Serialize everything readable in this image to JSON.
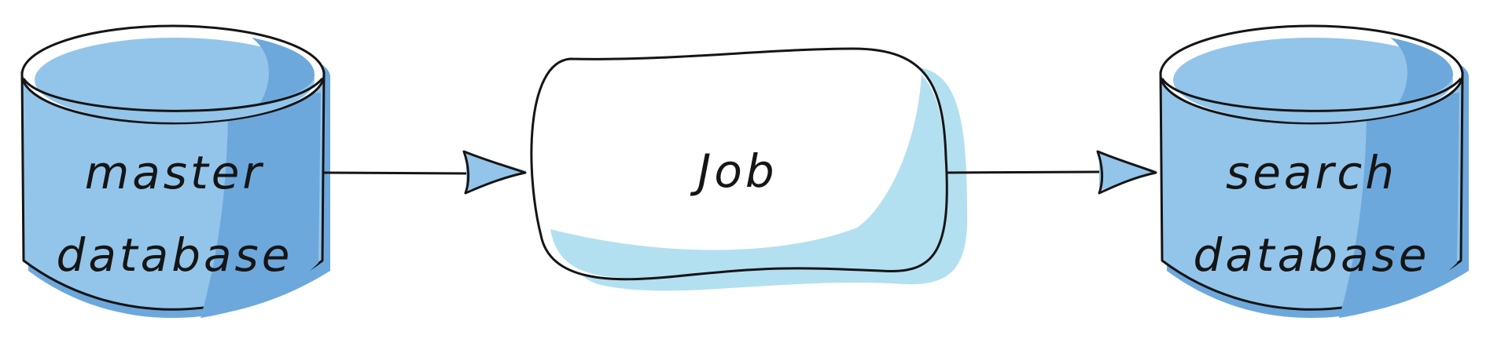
{
  "nodes": {
    "master_db": {
      "line1": "master",
      "line2": "database"
    },
    "job": {
      "label": "Job"
    },
    "search_db": {
      "line1": "search",
      "line2": "database"
    }
  },
  "edges": [
    {
      "from": "master_db",
      "to": "job"
    },
    {
      "from": "job",
      "to": "search_db"
    }
  ],
  "colors": {
    "cylinder_fill": "#93c5ea",
    "cylinder_shadow": "#6da8dc",
    "job_fill": "#ffffff",
    "job_shadow": "#b2e0f0",
    "stroke": "#151515"
  }
}
